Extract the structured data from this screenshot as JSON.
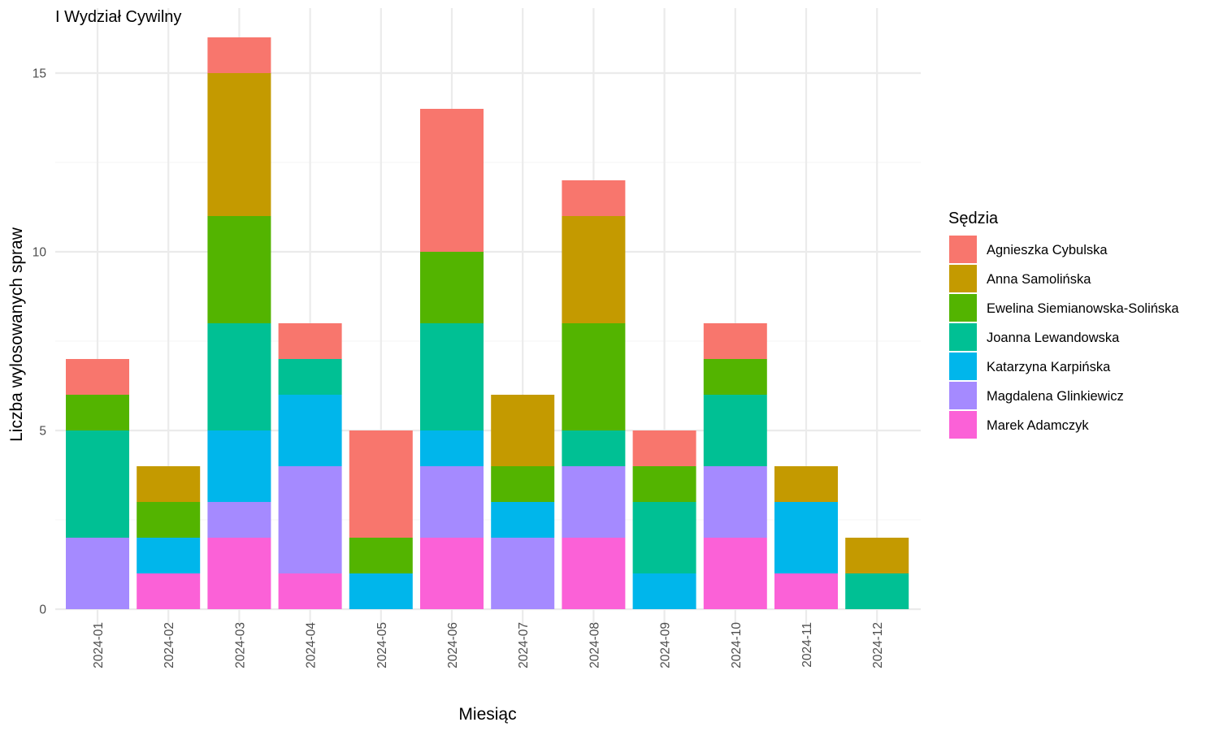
{
  "chart_data": {
    "type": "bar",
    "stacked": true,
    "title": "I Wydział Cywilny",
    "xlabel": "Miesiąc",
    "ylabel": "Liczba wylosowanych spraw",
    "ylim": [
      0,
      16
    ],
    "yticks": [
      0,
      5,
      10,
      15
    ],
    "grid": true,
    "legend": {
      "title": "Sędzia",
      "position": "right"
    },
    "categories": [
      "2024-01",
      "2024-02",
      "2024-03",
      "2024-04",
      "2024-05",
      "2024-06",
      "2024-07",
      "2024-08",
      "2024-09",
      "2024-10",
      "2024-11",
      "2024-12"
    ],
    "series": [
      {
        "name": "Agnieszka Cybulska",
        "color": "#F8766D",
        "values": [
          1,
          0,
          1,
          1,
          3,
          4,
          0,
          1,
          1,
          1,
          0,
          0
        ]
      },
      {
        "name": "Anna Samolińska",
        "color": "#C49A00",
        "values": [
          0,
          1,
          4,
          0,
          0,
          0,
          2,
          3,
          0,
          0,
          1,
          1
        ]
      },
      {
        "name": "Ewelina Siemianowska-Solińska",
        "color": "#53B400",
        "values": [
          1,
          1,
          3,
          0,
          1,
          2,
          1,
          3,
          1,
          1,
          0,
          0
        ]
      },
      {
        "name": "Joanna Lewandowska",
        "color": "#00C094",
        "values": [
          3,
          0,
          3,
          1,
          0,
          3,
          0,
          1,
          2,
          2,
          0,
          1
        ]
      },
      {
        "name": "Katarzyna Karpińska",
        "color": "#00B6EB",
        "values": [
          0,
          1,
          2,
          2,
          1,
          1,
          1,
          0,
          1,
          0,
          2,
          0
        ]
      },
      {
        "name": "Magdalena Glinkiewicz",
        "color": "#A58AFF",
        "values": [
          2,
          0,
          1,
          3,
          0,
          2,
          2,
          2,
          0,
          2,
          0,
          0
        ]
      },
      {
        "name": "Marek Adamczyk",
        "color": "#FB61D7",
        "values": [
          0,
          1,
          2,
          1,
          0,
          2,
          0,
          2,
          0,
          2,
          1,
          0
        ]
      }
    ]
  }
}
